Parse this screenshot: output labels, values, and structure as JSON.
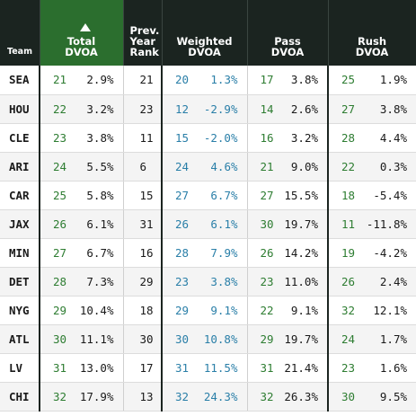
{
  "headers": {
    "team": "Team",
    "total_l1": "Total",
    "total_l2": "DVOA",
    "prev_l1": "Prev.",
    "prev_l2": "Year",
    "prev_l3": "Rank",
    "wtd_l1": "Weighted",
    "wtd_l2": "DVOA",
    "pass_l1": "Pass",
    "pass_l2": "DVOA",
    "rush_l1": "Rush",
    "rush_l2": "DVOA",
    "sort_icon": "sort-ascending-arrow"
  },
  "colors": {
    "header_bg": "#1b2420",
    "sorted_header_bg": "#2b6e2e",
    "rank_green": "#2e7d32",
    "weighted_blue": "#2a7fa8"
  },
  "rows": [
    {
      "team": "SEA",
      "total_rank": "21",
      "total": "2.9%",
      "prev": "21",
      "wtd_rank": "20",
      "wtd": "1.3%",
      "pass_rank": "17",
      "pass": "3.8%",
      "rush_rank": "25",
      "rush": "1.9%"
    },
    {
      "team": "HOU",
      "total_rank": "22",
      "total": "3.2%",
      "prev": "23",
      "wtd_rank": "12",
      "wtd": "-2.9%",
      "pass_rank": "14",
      "pass": "2.6%",
      "rush_rank": "27",
      "rush": "3.8%"
    },
    {
      "team": "CLE",
      "total_rank": "23",
      "total": "3.8%",
      "prev": "11",
      "wtd_rank": "15",
      "wtd": "-2.0%",
      "pass_rank": "16",
      "pass": "3.2%",
      "rush_rank": "28",
      "rush": "4.4%"
    },
    {
      "team": "ARI",
      "total_rank": "24",
      "total": "5.5%",
      "prev": "6",
      "wtd_rank": "24",
      "wtd": "4.6%",
      "pass_rank": "21",
      "pass": "9.0%",
      "rush_rank": "22",
      "rush": "0.3%"
    },
    {
      "team": "CAR",
      "total_rank": "25",
      "total": "5.8%",
      "prev": "15",
      "wtd_rank": "27",
      "wtd": "6.7%",
      "pass_rank": "27",
      "pass": "15.5%",
      "rush_rank": "18",
      "rush": "-5.4%"
    },
    {
      "team": "JAX",
      "total_rank": "26",
      "total": "6.1%",
      "prev": "31",
      "wtd_rank": "26",
      "wtd": "6.1%",
      "pass_rank": "30",
      "pass": "19.7%",
      "rush_rank": "11",
      "rush": "-11.8%"
    },
    {
      "team": "MIN",
      "total_rank": "27",
      "total": "6.7%",
      "prev": "16",
      "wtd_rank": "28",
      "wtd": "7.9%",
      "pass_rank": "26",
      "pass": "14.2%",
      "rush_rank": "19",
      "rush": "-4.2%"
    },
    {
      "team": "DET",
      "total_rank": "28",
      "total": "7.3%",
      "prev": "29",
      "wtd_rank": "23",
      "wtd": "3.8%",
      "pass_rank": "23",
      "pass": "11.0%",
      "rush_rank": "26",
      "rush": "2.4%"
    },
    {
      "team": "NYG",
      "total_rank": "29",
      "total": "10.4%",
      "prev": "18",
      "wtd_rank": "29",
      "wtd": "9.1%",
      "pass_rank": "22",
      "pass": "9.1%",
      "rush_rank": "32",
      "rush": "12.1%"
    },
    {
      "team": "ATL",
      "total_rank": "30",
      "total": "11.1%",
      "prev": "30",
      "wtd_rank": "30",
      "wtd": "10.8%",
      "pass_rank": "29",
      "pass": "19.7%",
      "rush_rank": "24",
      "rush": "1.7%"
    },
    {
      "team": "LV",
      "total_rank": "31",
      "total": "13.0%",
      "prev": "17",
      "wtd_rank": "31",
      "wtd": "11.5%",
      "pass_rank": "31",
      "pass": "21.4%",
      "rush_rank": "23",
      "rush": "1.6%"
    },
    {
      "team": "CHI",
      "total_rank": "32",
      "total": "17.9%",
      "prev": "13",
      "wtd_rank": "32",
      "wtd": "24.3%",
      "pass_rank": "32",
      "pass": "26.3%",
      "rush_rank": "30",
      "rush": "9.5%"
    }
  ]
}
